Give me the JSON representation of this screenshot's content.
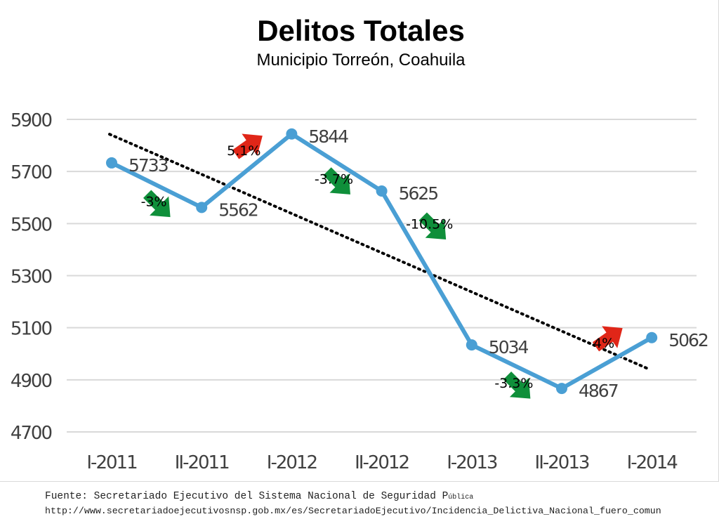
{
  "chart_data": {
    "type": "line",
    "title": "Delitos Totales",
    "subtitle": "Municipio Torreón, Coahuila",
    "categories": [
      "I-2011",
      "II-2011",
      "I-2012",
      "II-2012",
      "I-2013",
      "II-2013",
      "I-2014"
    ],
    "series": [
      {
        "name": "Delitos Totales",
        "values": [
          5733,
          5562,
          5844,
          5625,
          5034,
          4867,
          5062
        ],
        "color": "#4a9fd4"
      }
    ],
    "value_labels": [
      "5733",
      "5562",
      "5844",
      "5625",
      "5034",
      "4867",
      "5062"
    ],
    "yticks": [
      4700,
      4900,
      5100,
      5300,
      5500,
      5700,
      5900
    ],
    "ytick_labels": [
      "4700",
      "4900",
      "5100",
      "5300",
      "5500",
      "5700",
      "5900"
    ],
    "ylim": [
      4700,
      5900
    ],
    "trendline": {
      "style": "dotted",
      "color": "#000000",
      "start": 5843,
      "end": 4940
    },
    "changes": [
      {
        "label": "-3%",
        "direction": "down",
        "color": "#0f8f3a"
      },
      {
        "label": "5.1%",
        "direction": "up",
        "color": "#e02618"
      },
      {
        "label": "-3.7%",
        "direction": "down",
        "color": "#0f8f3a"
      },
      {
        "label": "-10.5%",
        "direction": "down",
        "color": "#0f8f3a"
      },
      {
        "label": "-3.3%",
        "direction": "down",
        "color": "#0f8f3a"
      },
      {
        "label": "4%",
        "direction": "up",
        "color": "#e02618"
      }
    ],
    "grid": true,
    "xlabel": "",
    "ylabel": ""
  },
  "footer": {
    "source_prefix": "Fuente: Secretariado Ejecutivo del Sistema Nacional de Seguridad P",
    "source_suffix": "ública",
    "url": "http://www.secretariadoejecutivosnsp.gob.mx/es/SecretariadoEjecutivo/Incidencia_Delictiva_Nacional_fuero_comun"
  }
}
